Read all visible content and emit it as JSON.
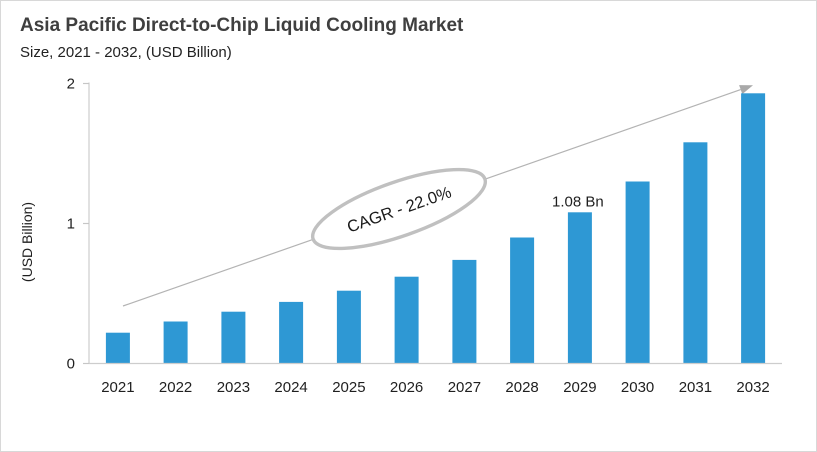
{
  "chart_data": {
    "type": "bar",
    "title": "Asia Pacific Direct-to-Chip Liquid Cooling Market",
    "subtitle": "Size, 2021 - 2032, (USD Billion)",
    "categories": [
      "2021",
      "2022",
      "2023",
      "2024",
      "2025",
      "2026",
      "2027",
      "2028",
      "2029",
      "2030",
      "2031",
      "2032"
    ],
    "values": [
      0.22,
      0.3,
      0.37,
      0.44,
      0.52,
      0.62,
      0.74,
      0.9,
      1.08,
      1.3,
      1.58,
      1.93
    ],
    "ylabel": "(USD Billion)",
    "ylim": [
      0,
      2
    ],
    "yticks": [
      0,
      1,
      2
    ],
    "grid": false,
    "legend": "none",
    "annotations": {
      "cagr_label": "CAGR - 22.0%",
      "data_label": {
        "category": "2029",
        "text": "1.08 Bn"
      },
      "trend_arrow": true
    }
  },
  "colors": {
    "bar": "#2E98D4",
    "axis_line": "#cdcdcd",
    "tick_mark": "#c6c6c6",
    "trend_line": "#b3b3b3",
    "arrowhead": "#a9a9a9",
    "ellipse_stroke": "#c0c0c0",
    "ellipse_fill": "#ffffff",
    "label_text": "#1f1f1f",
    "title_text": "#3f3f3f"
  }
}
